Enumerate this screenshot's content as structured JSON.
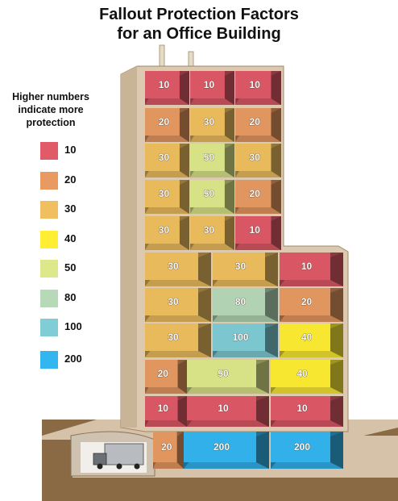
{
  "title_line1": "Fallout Protection Factors",
  "title_line2": "for an Office Building",
  "legend": {
    "heading_line1": "Higher numbers",
    "heading_line2": "indicate more",
    "heading_line3": "protection",
    "items": [
      {
        "label": "10",
        "color": "#e05a68"
      },
      {
        "label": "20",
        "color": "#e89a62"
      },
      {
        "label": "30",
        "color": "#f0c060"
      },
      {
        "label": "40",
        "color": "#ffee33"
      },
      {
        "label": "50",
        "color": "#dde88a"
      },
      {
        "label": "80",
        "color": "#b6d9b8"
      },
      {
        "label": "100",
        "color": "#80cdd6"
      },
      {
        "label": "200",
        "color": "#33b5f0"
      }
    ]
  },
  "colors": {
    "wall": "#ddc9b0",
    "wall_edge": "#a08868",
    "ground": "#8a6a45",
    "ground_top": "#d6c2a8"
  },
  "floors": [
    {
      "cells": [
        "10",
        "10",
        "10"
      ]
    },
    {
      "cells": [
        "20",
        "30",
        "20"
      ]
    },
    {
      "cells": [
        "30",
        "50",
        "30"
      ]
    },
    {
      "cells": [
        "30",
        "50",
        "20"
      ]
    },
    {
      "cells": [
        "30",
        "30",
        "10"
      ]
    },
    {
      "cells": [
        "30",
        "30",
        "10"
      ]
    },
    {
      "cells": [
        "30",
        "80",
        "20"
      ]
    },
    {
      "cells": [
        "30",
        "100",
        "40"
      ]
    },
    {
      "cells": [
        "20",
        "50",
        "40"
      ]
    },
    {
      "cells": [
        "10",
        "10",
        "10"
      ]
    },
    {
      "cells": [
        "20",
        "200",
        "200"
      ]
    }
  ]
}
